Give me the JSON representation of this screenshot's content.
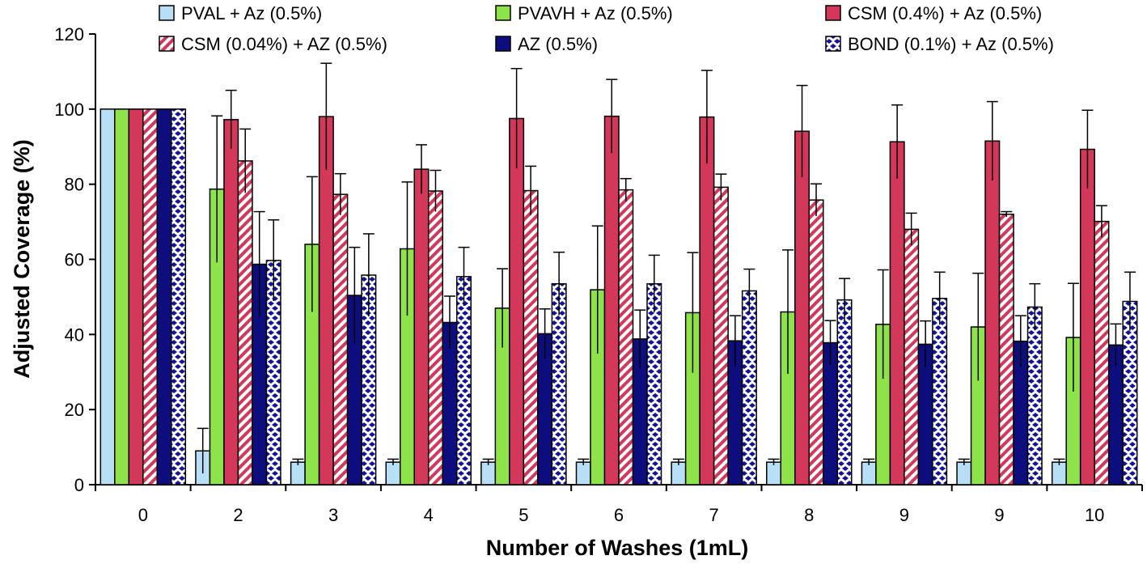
{
  "chart_data": {
    "type": "bar",
    "title": "",
    "xlabel": "Number of Washes (1mL)",
    "ylabel": "Adjusted Coverage (%)",
    "ylim": [
      0,
      120
    ],
    "yticks": [
      0,
      20,
      40,
      60,
      80,
      100,
      120
    ],
    "categories": [
      "0",
      "2",
      "3",
      "4",
      "5",
      "6",
      "7",
      "8",
      "9",
      "9",
      "10"
    ],
    "legend_position": "top",
    "series": [
      {
        "name": "PVAL + Az (0.5%)",
        "color": "#b7dff5",
        "pattern": "solid",
        "values": [
          100,
          9,
          6,
          6,
          6,
          6,
          6,
          6,
          6,
          6,
          6
        ],
        "errors": [
          0,
          6,
          0.8,
          0.8,
          0.8,
          0.8,
          0.8,
          0.8,
          0.8,
          0.8,
          0.8
        ]
      },
      {
        "name": "PVAVH + Az (0.5%)",
        "color": "#8ee24a",
        "pattern": "solid",
        "values": [
          100,
          78.7,
          64,
          62.8,
          47,
          51.9,
          45.8,
          46,
          42.7,
          42,
          39.2
        ],
        "errors": [
          0,
          19.5,
          18,
          17.8,
          10.5,
          17,
          16,
          16.5,
          14.5,
          14.3,
          14.4
        ]
      },
      {
        "name": "CSM (0.4%) + Az (0.5%)",
        "color": "#d3385a",
        "pattern": "solid",
        "values": [
          100,
          97.2,
          98,
          84,
          97.5,
          98.1,
          97.9,
          94.1,
          91.3,
          91.5,
          89.3
        ],
        "errors": [
          0,
          7.8,
          14.2,
          6.5,
          13.3,
          9.8,
          12.4,
          12.2,
          9.8,
          10.5,
          10.4
        ]
      },
      {
        "name": "CSM (0.04%) + AZ (0.5%)",
        "color": "#d3385a",
        "pattern": "stripes",
        "values": [
          100,
          86.2,
          77.3,
          78.2,
          78.3,
          78.5,
          79.2,
          75.8,
          68,
          72,
          70.1
        ],
        "errors": [
          0,
          8.5,
          5.5,
          5.5,
          6.5,
          3,
          3.5,
          4.3,
          4.3,
          0.7,
          4.2
        ]
      },
      {
        "name": "AZ (0.5%)",
        "color": "#0d0d7d",
        "pattern": "solid",
        "values": [
          100,
          58.7,
          50.4,
          43.2,
          40.2,
          38.8,
          38.3,
          37.8,
          37.4,
          38.2,
          37.2
        ],
        "errors": [
          0,
          14,
          12.8,
          7,
          6.6,
          7.7,
          6.7,
          5.9,
          6.2,
          6.8,
          5.6
        ]
      },
      {
        "name": "BOND (0.1%) + Az (0.5%)",
        "color": "#12129a",
        "pattern": "dots",
        "values": [
          100,
          59.7,
          55.8,
          55.4,
          53.5,
          53.5,
          51.6,
          49.2,
          49.6,
          47.3,
          48.8
        ],
        "errors": [
          0,
          10.8,
          11,
          7.8,
          8.4,
          7.6,
          5.8,
          5.7,
          7,
          6.2,
          7.8
        ]
      }
    ]
  }
}
